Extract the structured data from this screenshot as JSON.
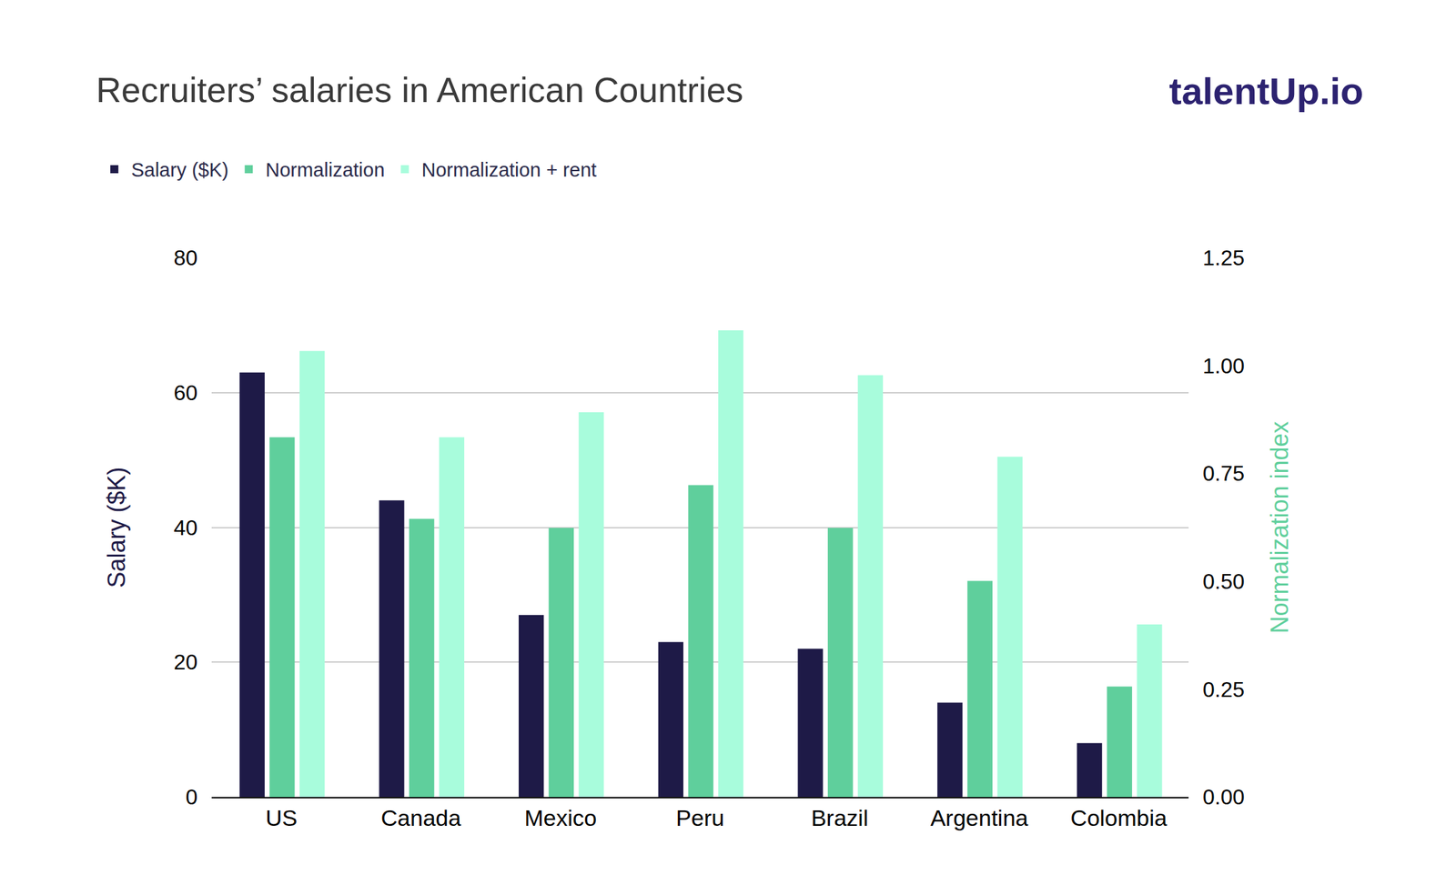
{
  "chart_data": {
    "type": "bar",
    "title": "Recruiters’ salaries in American Countries",
    "annotations": [
      "talentUp.io"
    ],
    "categories": [
      "US",
      "Canada",
      "Mexico",
      "Peru",
      "Brazil",
      "Argentina",
      "Colombia"
    ],
    "series": [
      {
        "name": "Salary ($K)",
        "color": "#1e1a47",
        "axis": "y",
        "values": [
          63,
          44,
          27,
          23,
          22,
          14,
          8
        ]
      },
      {
        "name": "Normalization",
        "color": "#5fcf9c",
        "axis": "y2",
        "values": [
          0.834,
          0.645,
          0.624,
          0.723,
          0.624,
          0.501,
          0.256
        ]
      },
      {
        "name": "Normalization + rent",
        "color": "#a8fcdc",
        "axis": "y2",
        "values": [
          1.034,
          0.834,
          0.892,
          1.082,
          0.978,
          0.789,
          0.4
        ]
      }
    ],
    "ylabel": "Salary ($K)",
    "y2label": "Normalization index",
    "ylim": [
      0,
      80
    ],
    "yticks": [
      0,
      20,
      40,
      60,
      80
    ],
    "y2lim": [
      0,
      1.25
    ],
    "y2ticks": [
      {
        "value": 0,
        "label": "0.00"
      },
      0.25,
      {
        "value": 0.5,
        "label": "0.50"
      },
      0.75,
      {
        "value": 1,
        "label": "1.00"
      },
      1.25
    ],
    "grid": true,
    "legend": "top left"
  }
}
